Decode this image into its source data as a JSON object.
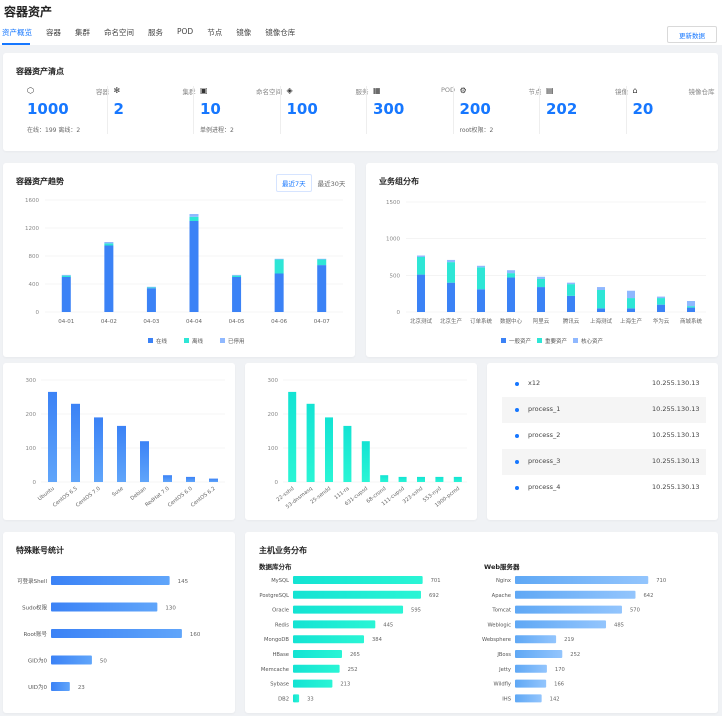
{
  "page": {
    "title": "容器资产"
  },
  "tabs": [
    {
      "label": "资产概览",
      "active": true
    },
    {
      "label": "容器"
    },
    {
      "label": "集群"
    },
    {
      "label": "命名空间"
    },
    {
      "label": "服务"
    },
    {
      "label": "POD"
    },
    {
      "label": "节点"
    },
    {
      "label": "镜像"
    },
    {
      "label": "镜像仓库"
    }
  ],
  "refresh_button": "更新数据",
  "inventory": {
    "title": "容器资产清点",
    "items": [
      {
        "icon": "cube-icon",
        "label": "容器",
        "value": "1000",
        "sub": [
          "在线：199",
          "离线：2"
        ]
      },
      {
        "icon": "cluster-icon",
        "label": "集群",
        "value": "2",
        "sub": []
      },
      {
        "icon": "namespace-icon",
        "label": "命名空间",
        "value": "10",
        "sub": [
          "单例进程：2"
        ]
      },
      {
        "icon": "service-icon",
        "label": "服务",
        "value": "100",
        "sub": []
      },
      {
        "icon": "pod-icon",
        "label": "POD",
        "value": "300",
        "sub": []
      },
      {
        "icon": "node-icon",
        "label": "节点",
        "value": "200",
        "sub": [
          "root权限：2"
        ]
      },
      {
        "icon": "image-icon",
        "label": "镜像",
        "value": "202",
        "sub": []
      },
      {
        "icon": "registry-icon",
        "label": "镜像仓库",
        "value": "20",
        "sub": []
      }
    ]
  },
  "trend": {
    "title": "容器资产趋势",
    "ranges": [
      "最近7天",
      "最近30天"
    ],
    "active_range": "最近7天"
  },
  "business": {
    "title": "业务组分布"
  },
  "special": {
    "title": "特殊账号统计"
  },
  "host": {
    "title": "主机业务分布",
    "db_title": "数据库分布",
    "web_title": "Web服务器"
  },
  "process_list": [
    {
      "name": "x12",
      "ip": "10.255.130.13"
    },
    {
      "name": "process_1",
      "ip": "10.255.130.13"
    },
    {
      "name": "process_2",
      "ip": "10.255.130.13"
    },
    {
      "name": "process_3",
      "ip": "10.255.130.13"
    },
    {
      "name": "process_4",
      "ip": "10.255.130.13"
    }
  ],
  "colors": {
    "accent": "#1677ff",
    "blue": "#3b82f6",
    "cyan": "#13e3d3",
    "light": "#8fb8ff"
  },
  "chart_data": [
    {
      "id": "trend",
      "type": "bar",
      "stacked": true,
      "categories": [
        "04-01",
        "04-02",
        "04-03",
        "04-04",
        "04-05",
        "04-06",
        "04-07"
      ],
      "series": [
        {
          "name": "在线",
          "values": [
            500,
            950,
            340,
            1300,
            500,
            550,
            670
          ]
        },
        {
          "name": "离线",
          "values": [
            20,
            30,
            10,
            60,
            20,
            200,
            80
          ]
        },
        {
          "name": "已停用",
          "values": [
            10,
            20,
            10,
            40,
            10,
            10,
            10
          ]
        }
      ],
      "ylim": [
        0,
        1600
      ],
      "yticks": [
        0,
        400,
        800,
        1200,
        1600
      ],
      "legend": "bottom"
    },
    {
      "id": "business",
      "type": "bar",
      "stacked": true,
      "categories": [
        "北京测试",
        "北京生产",
        "订单系统",
        "数据中心",
        "阿里云",
        "腾讯云",
        "上海测试",
        "上海生产",
        "华为云",
        "商城系统"
      ],
      "series": [
        {
          "name": "一般资产",
          "values": [
            510,
            400,
            310,
            470,
            340,
            220,
            50,
            50,
            100,
            60
          ]
        },
        {
          "name": "重要资产",
          "values": [
            240,
            280,
            300,
            60,
            110,
            160,
            250,
            140,
            90,
            20
          ]
        },
        {
          "name": "核心资产",
          "values": [
            20,
            30,
            20,
            40,
            30,
            20,
            40,
            100,
            20,
            70
          ]
        }
      ],
      "ylim": [
        0,
        1500
      ],
      "yticks": [
        0,
        500,
        1000,
        1500
      ],
      "legend": "bottom"
    },
    {
      "id": "os",
      "type": "bar",
      "categories": [
        "Ubuntu",
        "CentOS 6.5",
        "CentOS 7.0",
        "Suse",
        "Debian",
        "RedHat 7.0",
        "CentOS 6.0",
        "CentOS 6.2"
      ],
      "values": [
        265,
        230,
        190,
        165,
        120,
        20,
        15,
        10
      ],
      "ylim": [
        0,
        300
      ],
      "yticks": [
        0,
        100,
        200,
        300
      ]
    },
    {
      "id": "ports",
      "type": "bar",
      "categories": [
        "22-sshd",
        "53-dnsmasq",
        "25-sendd",
        "111-ra",
        "631-cupsd",
        "68-crond",
        "111-cupsd",
        "323-sshd",
        "553-nyd",
        "1900-pcmd"
      ],
      "values": [
        265,
        230,
        190,
        165,
        120,
        20,
        15,
        15,
        15,
        15
      ],
      "ylim": [
        0,
        300
      ],
      "yticks": [
        0,
        100,
        200,
        300
      ]
    },
    {
      "id": "special",
      "type": "bar",
      "orientation": "horizontal",
      "categories": [
        "可登录Shell",
        "Sudo权限",
        "Root账号",
        "GID为0",
        "UID为0"
      ],
      "values": [
        145,
        130,
        160,
        50,
        23
      ]
    },
    {
      "id": "db",
      "type": "bar",
      "orientation": "horizontal",
      "categories": [
        "MySQL",
        "PostgreSQL",
        "Oracle",
        "Redis",
        "MongoDB",
        "HBase",
        "Memcache",
        "Sybase",
        "DB2"
      ],
      "values": [
        701,
        692,
        595,
        445,
        384,
        265,
        252,
        213,
        33
      ]
    },
    {
      "id": "web",
      "type": "bar",
      "orientation": "horizontal",
      "categories": [
        "Nginx",
        "Apache",
        "Tomcat",
        "Weblogic",
        "Websphere",
        "JBoss",
        "Jetty",
        "Wildfly",
        "IHS"
      ],
      "values": [
        710,
        642,
        570,
        485,
        219,
        252,
        170,
        166,
        142
      ]
    }
  ]
}
